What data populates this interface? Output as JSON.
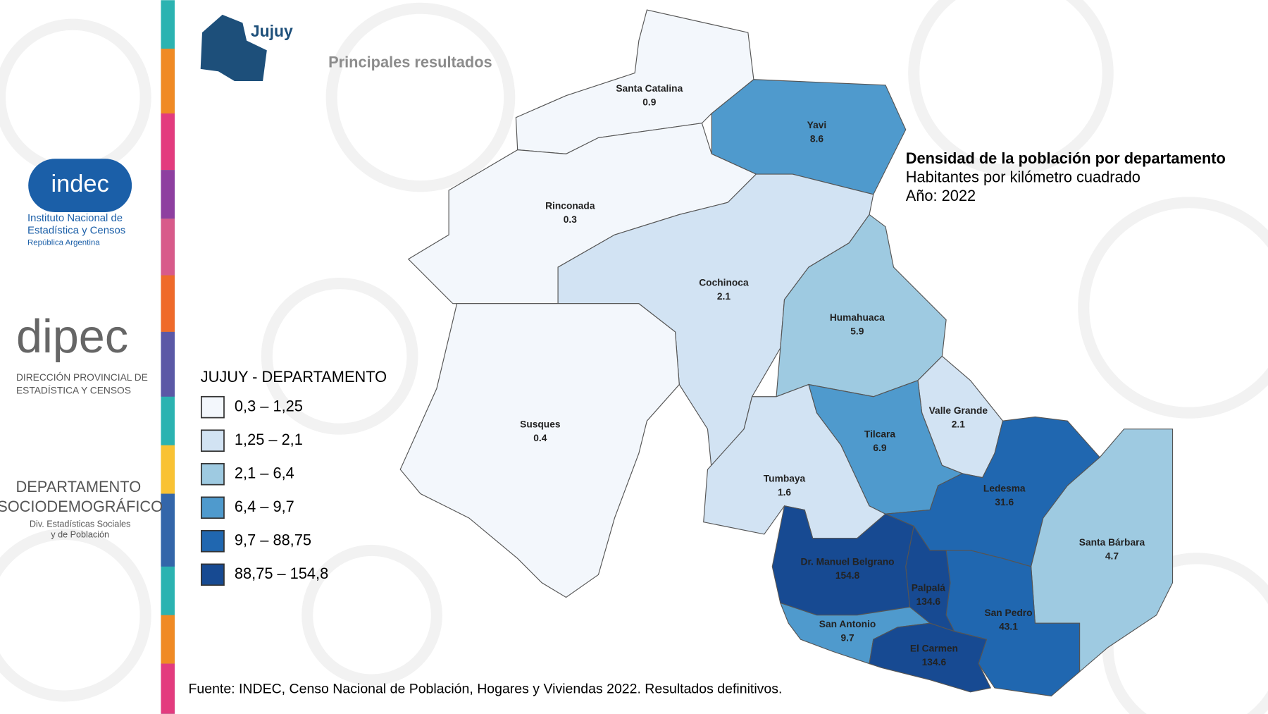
{
  "header": {
    "title": "Jujuy",
    "subtitle": "Principales resultados"
  },
  "logos": {
    "indec": {
      "name": "indec",
      "lines": [
        "Instituto Nacional de",
        "Estadística y Censos",
        "República Argentina"
      ]
    },
    "dipec": {
      "name": "dipec",
      "lines": [
        "DIRECCIÓN PROVINCIAL DE",
        "ESTADÍSTICA Y CENSOS"
      ]
    },
    "departamento": {
      "lines": [
        "DEPARTAMENTO",
        "SOCIODEMOGRÁFICO",
        "Div. Estadísticas Sociales",
        "y de Población"
      ]
    }
  },
  "map": {
    "title": "Densidad de la población por departamento",
    "subtitle": "Habitantes por kilómetro cuadrado",
    "year": "Año: 2022",
    "legend": {
      "title": "JUJUY - DEPARTAMENTO",
      "classes": [
        {
          "min": 0.3,
          "max": 1.25,
          "label": "0,3 – 1,25",
          "color": "#f3f7fc"
        },
        {
          "min": 1.25,
          "max": 2.1,
          "label": "1,25 – 2,1",
          "color": "#d2e3f3"
        },
        {
          "min": 2.1,
          "max": 6.4,
          "label": "2,1 – 6,4",
          "color": "#9ecae1"
        },
        {
          "min": 6.4,
          "max": 9.7,
          "label": "6,4 – 9,7",
          "color": "#4f9acd"
        },
        {
          "min": 9.7,
          "max": 88.75,
          "label": "9,7 – 88,75",
          "color": "#2067b0"
        },
        {
          "min": 88.75,
          "max": 154.8,
          "label": "88,75 – 154,8",
          "color": "#174a92"
        }
      ]
    },
    "departments": [
      {
        "name": "Santa Catalina",
        "value": 0.9
      },
      {
        "name": "Yavi",
        "value": 8.6
      },
      {
        "name": "Rinconada",
        "value": 0.3
      },
      {
        "name": "Cochinoca",
        "value": 2.1
      },
      {
        "name": "Humahuaca",
        "value": 5.9
      },
      {
        "name": "Susques",
        "value": 0.4
      },
      {
        "name": "Tumbaya",
        "value": 1.6
      },
      {
        "name": "Valle Grande",
        "value": 2.1
      },
      {
        "name": "Tilcara",
        "value": 6.9
      },
      {
        "name": "Ledesma",
        "value": 31.6
      },
      {
        "name": "Santa Bárbara",
        "value": 4.7
      },
      {
        "name": "San Pedro",
        "value": 43.1
      },
      {
        "name": "Palpalá",
        "value": 134.6
      },
      {
        "name": "Dr. Manuel Belgrano",
        "value": 154.8
      },
      {
        "name": "San Antonio",
        "value": 9.7
      },
      {
        "name": "El Carmen",
        "value": 134.6
      }
    ]
  },
  "source": "Fuente: INDEC, Censo Nacional de Población, Hogares y Viviendas 2022. Resultados definitivos."
}
